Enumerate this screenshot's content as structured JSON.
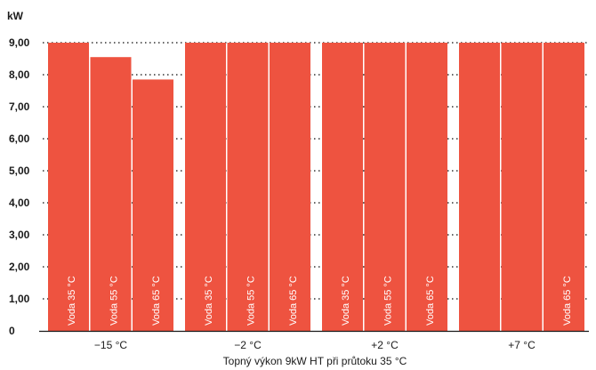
{
  "chart_data": {
    "type": "bar",
    "ylabel": "kW",
    "xlabel": "Topný výkon 9kW HT při průtoku 35 °C",
    "ylim": [
      0,
      9
    ],
    "yticks": [
      "0",
      "1,00",
      "2,00",
      "3,00",
      "4,00",
      "5,00",
      "6,00",
      "7,00",
      "8,00",
      "9,00"
    ],
    "grid": "horizontal-dotted",
    "bar_color": "#ee5340",
    "categories": [
      "−15 °C",
      "−2 °C",
      "+2 °C",
      "+7 °C"
    ],
    "series": [
      {
        "name": "Voda 35 °C",
        "values": [
          9.0,
          9.0,
          9.0,
          9.0
        ]
      },
      {
        "name": "Voda 55 °C",
        "values": [
          8.55,
          9.0,
          9.0,
          9.0
        ]
      },
      {
        "name": "Voda 65 °C",
        "values": [
          7.85,
          9.0,
          9.0,
          9.0
        ]
      }
    ],
    "bar_labels": [
      [
        "Voda 35 °C",
        "Voda 55 °C",
        "Voda 65 °C"
      ],
      [
        "Voda 35 °C",
        "Voda 55 °C",
        "Voda 65 °C"
      ],
      [
        "Voda 35 °C",
        "Voda 55 °C",
        "Voda 65 °C"
      ],
      [
        "",
        "",
        "Voda 65 °C"
      ]
    ]
  }
}
